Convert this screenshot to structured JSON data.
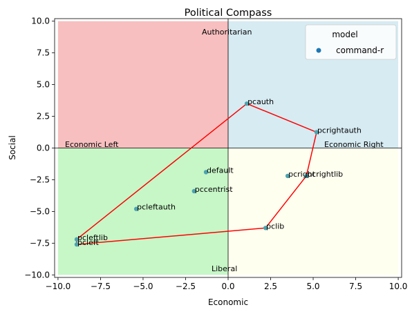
{
  "chart_data": {
    "type": "scatter",
    "title": "Political Compass",
    "xlabel": "Economic",
    "ylabel": "Social",
    "xlim": [
      -10.2,
      10.2
    ],
    "ylim": [
      -10.2,
      10.2
    ],
    "xticks": [
      "−10.0",
      "−7.5",
      "−5.0",
      "−2.5",
      "0.0",
      "2.5",
      "5.0",
      "7.5",
      "10.0"
    ],
    "xtick_values": [
      -10,
      -7.5,
      -5,
      -2.5,
      0,
      2.5,
      5,
      7.5,
      10
    ],
    "yticks": [
      "10.0",
      "7.5",
      "5.0",
      "2.5",
      "0.0",
      "−2.5",
      "−5.0",
      "−7.5",
      "−10.0"
    ],
    "ytick_values": [
      10,
      7.5,
      5,
      2.5,
      0,
      -2.5,
      -5,
      -7.5,
      -10
    ],
    "grid": false,
    "legend": {
      "title": "model",
      "placement": "upper-right",
      "entries": [
        {
          "label": "command-r",
          "color": "#1f77b4"
        }
      ]
    },
    "quadrants": [
      {
        "name": "authoritarian-left",
        "color": "#f08080"
      },
      {
        "name": "authoritarian-right",
        "color": "#add8e6"
      },
      {
        "name": "libertarian-left",
        "color": "#90ee90"
      },
      {
        "name": "libertarian-right",
        "color": "#ffffe0"
      }
    ],
    "quadrant_labels": {
      "top": "Authoritarian",
      "bottom": "Liberal",
      "left": "Economic Left",
      "right": "Economic Right"
    },
    "points": [
      {
        "label": "pcauth",
        "x": 1.1,
        "y": 3.5
      },
      {
        "label": "pcrightauth",
        "x": 5.2,
        "y": 1.25
      },
      {
        "label": "pcright",
        "x": 3.5,
        "y": -2.2
      },
      {
        "label": "pcrightlib",
        "x": 4.6,
        "y": -2.2
      },
      {
        "label": "pclib",
        "x": 2.2,
        "y": -6.3
      },
      {
        "label": "pcleft",
        "x": -8.9,
        "y": -7.6
      },
      {
        "label": "pcleftlib",
        "x": -8.9,
        "y": -7.2
      },
      {
        "label": "pcleftauth",
        "x": -5.4,
        "y": -4.8
      },
      {
        "label": "default",
        "x": -1.3,
        "y": -1.9
      },
      {
        "label": "pccentrist",
        "x": -2.0,
        "y": -3.4
      }
    ],
    "path": [
      "pcauth",
      "pcrightauth",
      "pcrightlib",
      "pclib",
      "pcleft",
      "pcleftlib",
      "pcauth"
    ],
    "path_color": "#ff0000",
    "point_color": "#4ca3b0"
  }
}
